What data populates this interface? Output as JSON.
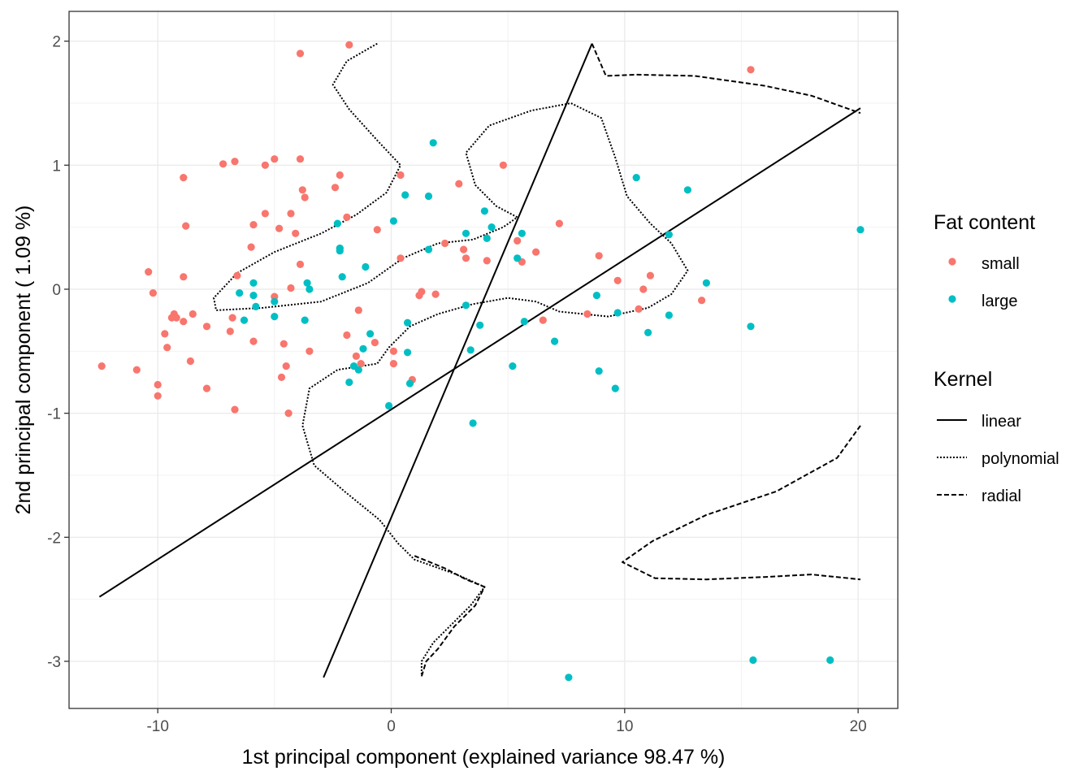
{
  "chart_data": {
    "type": "scatter",
    "title": "",
    "xlabel": "1st principal component (explained variance 98.47 %)",
    "ylabel": "2nd principal component ( 1.09 %)",
    "xlim": [
      -13.8,
      21.7
    ],
    "ylim": [
      -3.38,
      2.24
    ],
    "xticks": [
      -10,
      0,
      10,
      20
    ],
    "yticks": [
      -3,
      -2,
      -1,
      0,
      1,
      2
    ],
    "xtick_labels": [
      "-10",
      "0",
      "10",
      "20"
    ],
    "ytick_labels": [
      "-3",
      "-2",
      "-1",
      "0",
      "1",
      "2"
    ],
    "grid": true,
    "colors": {
      "small": "#F8766D",
      "large": "#00BFC4"
    },
    "legend": {
      "placement": "right",
      "color_title": "Fat content",
      "color_entries": [
        "small",
        "large"
      ],
      "line_title": "Kernel",
      "line_entries": [
        "linear",
        "polynomial",
        "radial"
      ]
    },
    "series": [
      {
        "name": "small",
        "points": [
          [
            -12.4,
            -0.62
          ],
          [
            -10.9,
            -0.65
          ],
          [
            -10.0,
            -0.77
          ],
          [
            -10.0,
            -0.86
          ],
          [
            -10.4,
            0.14
          ],
          [
            -10.2,
            -0.03
          ],
          [
            -9.7,
            -0.36
          ],
          [
            -9.6,
            -0.47
          ],
          [
            -9.4,
            -0.23
          ],
          [
            -9.3,
            -0.2
          ],
          [
            -9.2,
            -0.23
          ],
          [
            -8.9,
            0.9
          ],
          [
            -8.9,
            0.1
          ],
          [
            -8.8,
            0.51
          ],
          [
            -8.9,
            -0.26
          ],
          [
            -8.5,
            -0.2
          ],
          [
            -8.6,
            -0.58
          ],
          [
            -7.9,
            -0.3
          ],
          [
            -7.9,
            -0.8
          ],
          [
            -7.2,
            1.01
          ],
          [
            -6.7,
            1.03
          ],
          [
            -6.6,
            0.11
          ],
          [
            -6.9,
            -0.34
          ],
          [
            -6.8,
            -0.23
          ],
          [
            -6.7,
            -0.97
          ],
          [
            -6.0,
            0.34
          ],
          [
            -5.9,
            0.52
          ],
          [
            -5.9,
            -0.42
          ],
          [
            -5.4,
            1.0
          ],
          [
            -5.4,
            0.61
          ],
          [
            -5.0,
            1.05
          ],
          [
            -5.0,
            -0.06
          ],
          [
            -4.8,
            0.49
          ],
          [
            -4.7,
            -0.71
          ],
          [
            -4.6,
            -0.44
          ],
          [
            -4.4,
            -1.0
          ],
          [
            -4.3,
            0.61
          ],
          [
            -4.3,
            0.01
          ],
          [
            -4.1,
            0.45
          ],
          [
            -4.5,
            -0.62
          ],
          [
            -3.9,
            1.9
          ],
          [
            -3.9,
            1.05
          ],
          [
            -3.8,
            0.8
          ],
          [
            -3.7,
            0.74
          ],
          [
            -3.9,
            0.2
          ],
          [
            -3.5,
            -0.5
          ],
          [
            -1.8,
            1.97
          ],
          [
            -2.4,
            0.82
          ],
          [
            -2.2,
            0.92
          ],
          [
            -1.9,
            0.58
          ],
          [
            -1.9,
            -0.37
          ],
          [
            -2.2,
            0.33
          ],
          [
            -1.5,
            -0.54
          ],
          [
            -1.3,
            -0.6
          ],
          [
            -1.4,
            -0.17
          ],
          [
            -0.6,
            0.48
          ],
          [
            -0.7,
            -0.43
          ],
          [
            0.4,
            0.92
          ],
          [
            0.4,
            0.25
          ],
          [
            0.1,
            -0.5
          ],
          [
            0.1,
            -0.6
          ],
          [
            0.9,
            -0.73
          ],
          [
            1.2,
            -0.05
          ],
          [
            1.3,
            -0.02
          ],
          [
            1.9,
            -0.04
          ],
          [
            2.3,
            0.37
          ],
          [
            2.9,
            0.85
          ],
          [
            3.1,
            0.32
          ],
          [
            3.2,
            0.25
          ],
          [
            4.1,
            0.23
          ],
          [
            4.8,
            1.0
          ],
          [
            5.4,
            0.39
          ],
          [
            5.6,
            0.22
          ],
          [
            6.2,
            0.3
          ],
          [
            6.5,
            -0.25
          ],
          [
            7.2,
            0.53
          ],
          [
            8.9,
            0.27
          ],
          [
            8.4,
            -0.2
          ],
          [
            9.7,
            0.07
          ],
          [
            10.6,
            -0.16
          ],
          [
            10.8,
            0.0
          ],
          [
            11.1,
            0.11
          ],
          [
            13.3,
            -0.09
          ],
          [
            15.4,
            1.77
          ]
        ]
      },
      {
        "name": "large",
        "points": [
          [
            -6.3,
            -0.25
          ],
          [
            -6.5,
            -0.03
          ],
          [
            -5.9,
            -0.05
          ],
          [
            -5.9,
            0.05
          ],
          [
            -5.8,
            -0.14
          ],
          [
            -5.0,
            -0.1
          ],
          [
            -5.0,
            -0.22
          ],
          [
            -3.6,
            0.05
          ],
          [
            -3.5,
            0.0
          ],
          [
            -2.3,
            0.53
          ],
          [
            -2.2,
            0.33
          ],
          [
            -2.2,
            0.31
          ],
          [
            -2.1,
            0.1
          ],
          [
            -3.7,
            -0.25
          ],
          [
            -1.8,
            -0.75
          ],
          [
            -1.6,
            -0.62
          ],
          [
            -1.4,
            -0.65
          ],
          [
            -1.2,
            -0.48
          ],
          [
            -1.1,
            0.18
          ],
          [
            -0.9,
            -0.36
          ],
          [
            -0.1,
            -0.94
          ],
          [
            0.1,
            0.55
          ],
          [
            0.6,
            0.76
          ],
          [
            0.7,
            -0.51
          ],
          [
            0.8,
            -0.76
          ],
          [
            0.7,
            -0.27
          ],
          [
            1.6,
            0.32
          ],
          [
            1.6,
            0.75
          ],
          [
            1.8,
            1.18
          ],
          [
            3.2,
            0.45
          ],
          [
            3.2,
            -0.13
          ],
          [
            3.4,
            -0.49
          ],
          [
            3.5,
            -1.08
          ],
          [
            3.8,
            -0.29
          ],
          [
            4.0,
            0.63
          ],
          [
            4.1,
            0.41
          ],
          [
            4.3,
            0.5
          ],
          [
            5.2,
            -0.62
          ],
          [
            5.4,
            0.25
          ],
          [
            5.6,
            0.45
          ],
          [
            5.7,
            -0.26
          ],
          [
            7.0,
            -0.42
          ],
          [
            7.6,
            -3.13
          ],
          [
            8.9,
            -0.66
          ],
          [
            8.8,
            -0.05
          ],
          [
            9.6,
            -0.8
          ],
          [
            9.7,
            -0.19
          ],
          [
            10.5,
            0.9
          ],
          [
            11.0,
            -0.35
          ],
          [
            11.9,
            0.44
          ],
          [
            11.9,
            -0.21
          ],
          [
            12.7,
            0.8
          ],
          [
            13.5,
            0.05
          ],
          [
            15.4,
            -0.3
          ],
          [
            15.5,
            -2.99
          ],
          [
            18.8,
            -2.99
          ],
          [
            20.1,
            0.48
          ]
        ]
      }
    ],
    "lines": [
      {
        "name": "linear",
        "segments": [
          [
            [
              -12.5,
              -2.48
            ],
            [
              20.1,
              1.46
            ]
          ],
          [
            [
              -2.9,
              -3.13
            ],
            [
              8.6,
              1.98
            ]
          ]
        ]
      },
      {
        "name": "polynomial",
        "segments": [
          [
            [
              -0.6,
              1.98
            ],
            [
              -1.9,
              1.84
            ],
            [
              -2.5,
              1.65
            ],
            [
              -1.8,
              1.45
            ],
            [
              -0.6,
              1.2
            ],
            [
              0.4,
              1.0
            ],
            [
              -0.2,
              0.78
            ],
            [
              -1.5,
              0.6
            ],
            [
              -3.0,
              0.45
            ],
            [
              -5.0,
              0.3
            ],
            [
              -6.6,
              0.13
            ],
            [
              -7.6,
              -0.07
            ],
            [
              -7.5,
              -0.17
            ],
            [
              -5.5,
              -0.15
            ],
            [
              -3.0,
              -0.1
            ],
            [
              -1.0,
              0.05
            ],
            [
              0.5,
              0.25
            ],
            [
              2.0,
              0.37
            ],
            [
              3.5,
              0.4
            ],
            [
              4.8,
              0.5
            ],
            [
              5.4,
              0.58
            ],
            [
              4.5,
              0.67
            ],
            [
              3.6,
              0.84
            ],
            [
              3.2,
              1.1
            ],
            [
              4.2,
              1.32
            ],
            [
              6.0,
              1.44
            ],
            [
              7.7,
              1.5
            ],
            [
              9.0,
              1.38
            ],
            [
              9.6,
              1.06
            ],
            [
              10.1,
              0.75
            ],
            [
              11.1,
              0.53
            ],
            [
              12.0,
              0.37
            ],
            [
              12.7,
              0.15
            ],
            [
              12.0,
              -0.04
            ],
            [
              11.0,
              -0.15
            ],
            [
              9.3,
              -0.22
            ],
            [
              7.2,
              -0.18
            ],
            [
              6.2,
              -0.1
            ],
            [
              5.0,
              -0.07
            ],
            [
              3.5,
              -0.12
            ],
            [
              2.0,
              -0.2
            ],
            [
              0.8,
              -0.3
            ],
            [
              -0.1,
              -0.47
            ],
            [
              -0.6,
              -0.6
            ],
            [
              -2.3,
              -0.65
            ],
            [
              -3.5,
              -0.8
            ],
            [
              -3.8,
              -1.1
            ],
            [
              -3.3,
              -1.42
            ],
            [
              -2.0,
              -1.63
            ],
            [
              -0.5,
              -1.86
            ],
            [
              0.3,
              -2.05
            ],
            [
              1.0,
              -2.18
            ],
            [
              2.8,
              -2.3
            ],
            [
              4.0,
              -2.4
            ],
            [
              3.4,
              -2.55
            ],
            [
              2.6,
              -2.7
            ],
            [
              1.8,
              -2.85
            ],
            [
              1.3,
              -3.0
            ],
            [
              1.3,
              -3.12
            ]
          ]
        ]
      },
      {
        "name": "radial",
        "segments": [
          [
            [
              1.3,
              -3.12
            ],
            [
              1.5,
              -3.0
            ],
            [
              2.0,
              -2.9
            ],
            [
              2.7,
              -2.72
            ],
            [
              3.6,
              -2.55
            ],
            [
              4.0,
              -2.4
            ],
            [
              3.2,
              -2.34
            ],
            [
              2.3,
              -2.25
            ],
            [
              1.0,
              -2.15
            ]
          ],
          [
            [
              8.6,
              1.98
            ],
            [
              9.2,
              1.72
            ],
            [
              10.5,
              1.73
            ],
            [
              13.0,
              1.72
            ],
            [
              16.0,
              1.64
            ],
            [
              18.0,
              1.56
            ],
            [
              20.1,
              1.42
            ]
          ],
          [
            [
              20.1,
              -1.1
            ],
            [
              19.1,
              -1.36
            ],
            [
              16.5,
              -1.63
            ],
            [
              13.5,
              -1.82
            ],
            [
              11.2,
              -2.03
            ],
            [
              9.9,
              -2.2
            ],
            [
              11.3,
              -2.33
            ],
            [
              13.5,
              -2.34
            ],
            [
              16.0,
              -2.32
            ],
            [
              18.0,
              -2.3
            ],
            [
              20.1,
              -2.34
            ]
          ]
        ]
      }
    ]
  }
}
